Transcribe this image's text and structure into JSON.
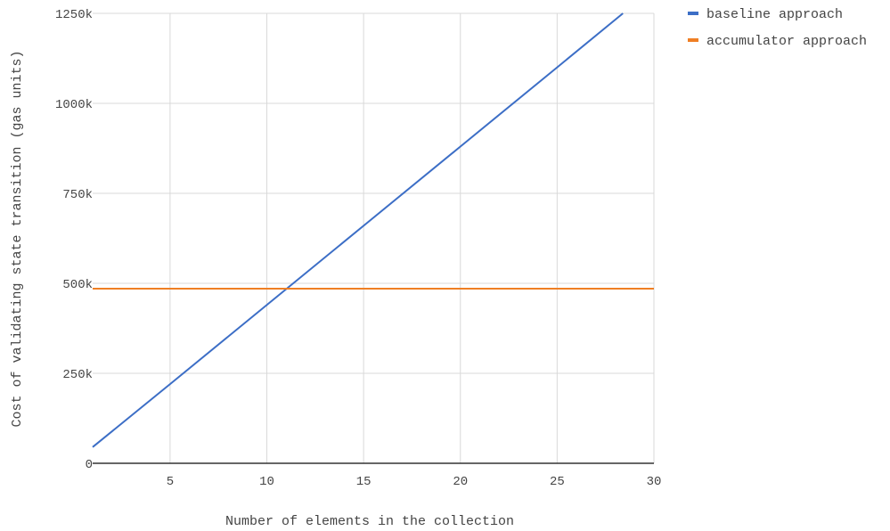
{
  "chart_data": {
    "type": "line",
    "title": "",
    "xlabel": "Number of elements in the collection",
    "ylabel": "Cost of validating state transition (gas units)",
    "xlim": [
      1,
      30
    ],
    "ylim": [
      0,
      1250000
    ],
    "x_ticks": [
      5,
      10,
      15,
      20,
      25,
      30
    ],
    "y_ticks": [
      {
        "value": 0,
        "label": "0"
      },
      {
        "value": 250000,
        "label": "250k"
      },
      {
        "value": 500000,
        "label": "500k"
      },
      {
        "value": 750000,
        "label": "750k"
      },
      {
        "value": 1000000,
        "label": "1000k"
      },
      {
        "value": 1250000,
        "label": "1250k"
      }
    ],
    "grid": true,
    "legend_position": "top-right",
    "series": [
      {
        "name": "baseline approach",
        "color": "#3c6ec6",
        "x": [
          1,
          5,
          10,
          15,
          20,
          25,
          28.4
        ],
        "y": [
          45000,
          220000,
          440000,
          660000,
          880000,
          1100000,
          1250000
        ]
      },
      {
        "name": "accumulator approach",
        "color": "#ef7f24",
        "x": [
          1,
          30
        ],
        "y": [
          485000,
          485000
        ]
      }
    ]
  }
}
